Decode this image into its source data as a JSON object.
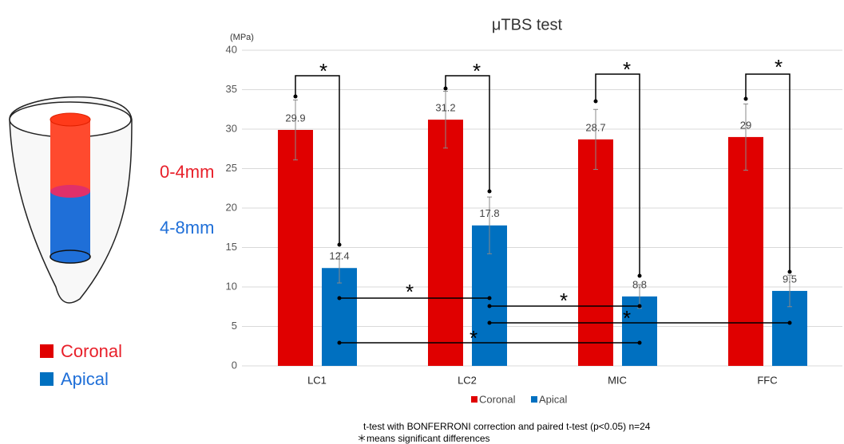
{
  "chart_data": {
    "type": "bar",
    "title": "μTBS test",
    "y_label": "(MPa)",
    "categories": [
      "LC1",
      "LC2",
      "MIC",
      "FFC"
    ],
    "series": [
      {
        "name": "Coronal",
        "color": "#e00000",
        "values": [
          29.9,
          31.2,
          28.7,
          29
        ],
        "errors": [
          3.8,
          3.6,
          3.8,
          4.2
        ]
      },
      {
        "name": "Apical",
        "color": "#0070c0",
        "values": [
          12.4,
          17.8,
          8.8,
          9.5
        ],
        "errors": [
          1.9,
          3.6,
          1.5,
          2
        ]
      }
    ],
    "ylim": [
      0,
      40
    ],
    "yticks": [
      0,
      5,
      10,
      15,
      20,
      25,
      30,
      35,
      40
    ],
    "grid": true,
    "significance_marks": [
      "*",
      "*",
      "*",
      "*",
      "*",
      "*",
      "*",
      "*"
    ],
    "notes": [
      "t-test with BONFERRONI correction and paired t-test (p<0.05) n=24",
      "＊means  significant differences"
    ]
  },
  "diagram": {
    "zones": [
      "0-4mm",
      "4-8mm"
    ]
  }
}
